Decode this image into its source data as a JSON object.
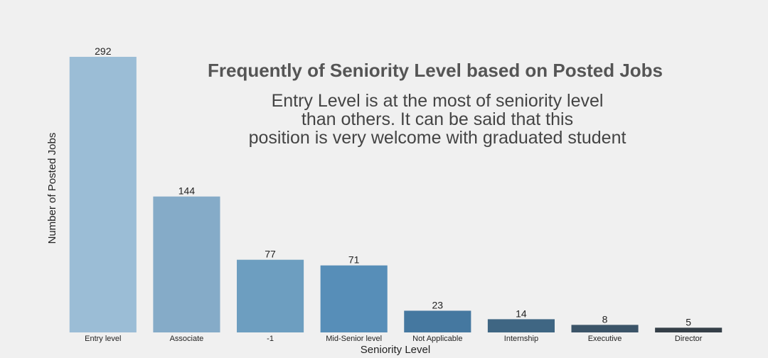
{
  "chart_data": {
    "type": "bar",
    "title": "Frequently of Seniority Level based on Posted Jobs",
    "annotation_lines": [
      "Entry Level is at the most of seniority level",
      "than others. It can be said that this",
      "position is very welcome with graduated student"
    ],
    "xlabel": "Seniority Level",
    "ylabel": "Number of Posted Jobs",
    "categories": [
      "Entry level",
      "Associate",
      "-1",
      "Mid-Senior level",
      "Not Applicable",
      "Internship",
      "Executive",
      "Director"
    ],
    "values": [
      292,
      144,
      77,
      71,
      23,
      14,
      8,
      5
    ],
    "data_labels": [
      "292",
      "144",
      "77",
      "71",
      "23",
      "14",
      "8",
      "5"
    ],
    "ylim": [
      0,
      292
    ],
    "grid": false,
    "colors": [
      "#9bbdd6",
      "#85abc8",
      "#6d9ec0",
      "#578eb8",
      "#4578a0",
      "#3f6683",
      "#3b5468",
      "#353f48"
    ],
    "background": "#f0f0f0"
  }
}
